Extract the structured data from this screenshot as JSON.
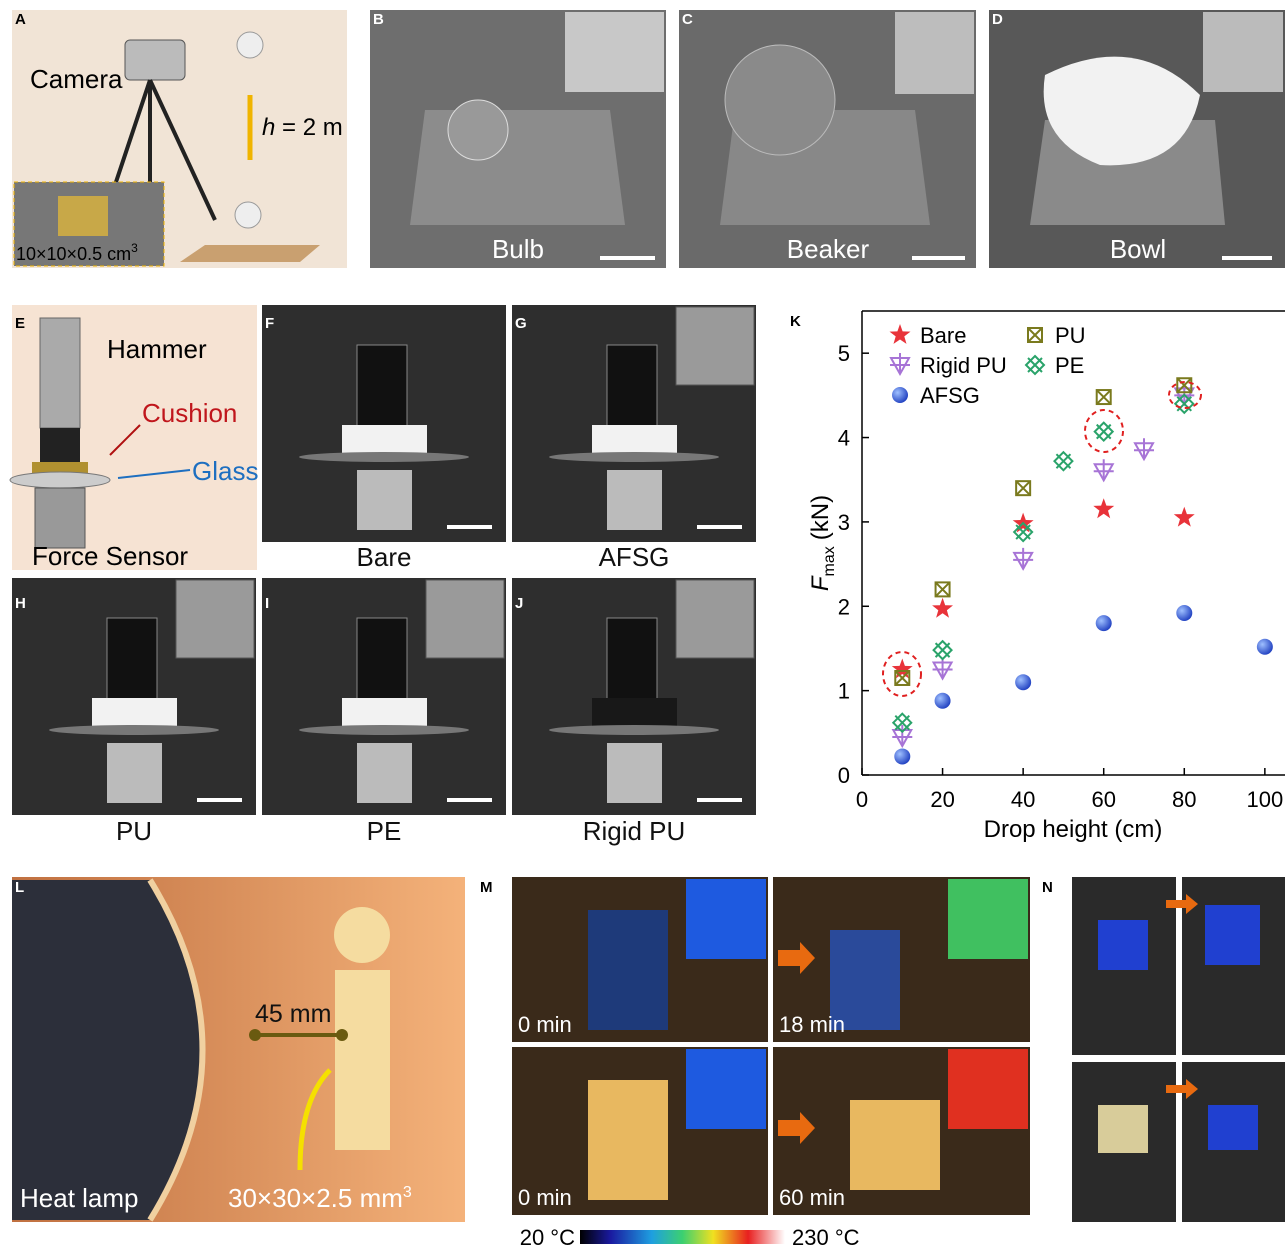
{
  "panel_letters": [
    "A",
    "B",
    "C",
    "D",
    "E",
    "F",
    "G",
    "H",
    "I",
    "J",
    "K",
    "L",
    "M",
    "N"
  ],
  "panel_a": {
    "camera": "Camera",
    "height_symbol": "h",
    "height_value": "= 2 m",
    "sample_size": "10×10×0.5 cm",
    "sample_size_exponent": "3"
  },
  "photo_captions": [
    "Bulb",
    "Beaker",
    "Bowl"
  ],
  "panel_e": {
    "hammer": "Hammer",
    "cushion": "Cushion",
    "glass": "Glass",
    "sensor": "Force Sensor"
  },
  "cushion_captions": [
    "Bare",
    "AFSG",
    "PU",
    "PE",
    "Rigid PU"
  ],
  "panel_l": {
    "distance": "45 mm",
    "lamp": "Heat lamp",
    "sample_size": "30×30×2.5 mm",
    "sample_size_exponent": "3"
  },
  "panel_m": {
    "times": [
      "0 min",
      "18 min",
      "0 min",
      "60 min"
    ],
    "colorbar_min": "20 °C",
    "colorbar_max": "230 °C"
  },
  "chart_data": {
    "type": "scatter",
    "xlabel": "Drop height (cm)",
    "ylabel": {
      "symbol": "F",
      "subscript": "max",
      "unit": "(kN)"
    },
    "xlim": [
      0,
      105
    ],
    "xticks": [
      0,
      20,
      40,
      60,
      80,
      100
    ],
    "ylim": [
      0,
      5.5
    ],
    "yticks": [
      0,
      1,
      2,
      3,
      4,
      5
    ],
    "series": [
      {
        "name": "Bare",
        "color": "#e8333a",
        "marker": "star",
        "x": [
          10,
          20,
          40,
          60,
          80
        ],
        "values": [
          1.25,
          1.97,
          2.98,
          3.15,
          3.05
        ]
      },
      {
        "name": "Rigid PU",
        "color": "#a774d6",
        "marker": "triangle-cross",
        "x": [
          10,
          20,
          40,
          60,
          70,
          80
        ],
        "values": [
          0.45,
          1.25,
          2.55,
          3.6,
          3.85,
          4.5
        ]
      },
      {
        "name": "AFSG",
        "color": "#1f4fd8",
        "marker": "sphere",
        "x": [
          10,
          20,
          40,
          60,
          80,
          100
        ],
        "values": [
          0.22,
          0.88,
          1.1,
          1.8,
          1.92,
          1.52
        ]
      },
      {
        "name": "PU",
        "color": "#7a7a1e",
        "marker": "boxed-x",
        "x": [
          10,
          20,
          40,
          60,
          80
        ],
        "values": [
          1.15,
          2.2,
          3.4,
          4.48,
          4.62
        ]
      },
      {
        "name": "PE",
        "color": "#2aa36a",
        "marker": "diamond-x",
        "x": [
          10,
          20,
          40,
          50,
          60,
          80
        ],
        "values": [
          0.62,
          1.48,
          2.88,
          3.72,
          4.07,
          4.4
        ]
      }
    ]
  }
}
